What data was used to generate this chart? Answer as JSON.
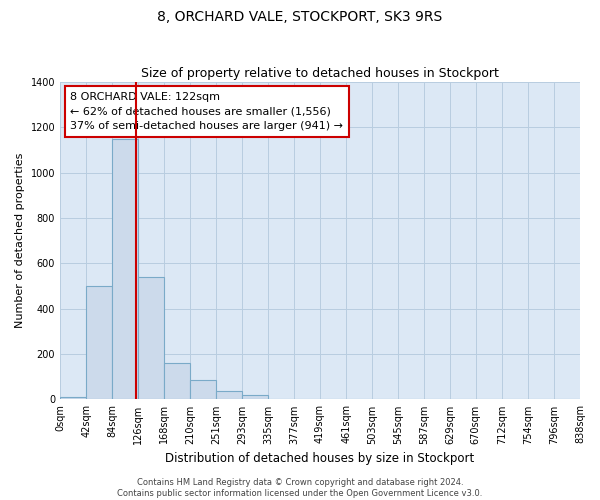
{
  "title": "8, ORCHARD VALE, STOCKPORT, SK3 9RS",
  "subtitle": "Size of property relative to detached houses in Stockport",
  "xlabel": "Distribution of detached houses by size in Stockport",
  "ylabel": "Number of detached properties",
  "bar_color": "#ccdaeb",
  "bar_edge_color": "#7aaac8",
  "vline_color": "#cc0000",
  "vline_x": 122,
  "bin_edges": [
    0,
    42,
    84,
    126,
    168,
    210,
    251,
    293,
    335,
    377,
    419,
    461,
    503,
    545,
    587,
    629,
    670,
    712,
    754,
    796,
    838
  ],
  "bin_labels": [
    "0sqm",
    "42sqm",
    "84sqm",
    "126sqm",
    "168sqm",
    "210sqm",
    "251sqm",
    "293sqm",
    "335sqm",
    "377sqm",
    "419sqm",
    "461sqm",
    "503sqm",
    "545sqm",
    "587sqm",
    "629sqm",
    "670sqm",
    "712sqm",
    "754sqm",
    "796sqm",
    "838sqm"
  ],
  "bar_heights": [
    10,
    500,
    1150,
    540,
    160,
    85,
    35,
    20,
    0,
    0,
    0,
    0,
    0,
    0,
    0,
    0,
    0,
    0,
    0,
    0
  ],
  "ylim": [
    0,
    1400
  ],
  "yticks": [
    0,
    200,
    400,
    600,
    800,
    1000,
    1200,
    1400
  ],
  "annotation_title": "8 ORCHARD VALE: 122sqm",
  "annotation_line1": "← 62% of detached houses are smaller (1,556)",
  "annotation_line2": "37% of semi-detached houses are larger (941) →",
  "annotation_box_color": "#ffffff",
  "annotation_box_edge": "#cc0000",
  "footer_line1": "Contains HM Land Registry data © Crown copyright and database right 2024.",
  "footer_line2": "Contains public sector information licensed under the Open Government Licence v3.0.",
  "plot_bg_color": "#dce8f5",
  "background_color": "#ffffff",
  "grid_color": "#b8cde0",
  "title_fontsize": 10,
  "subtitle_fontsize": 9,
  "xlabel_fontsize": 8.5,
  "ylabel_fontsize": 8,
  "tick_fontsize": 7,
  "annotation_fontsize": 8,
  "footer_fontsize": 6
}
